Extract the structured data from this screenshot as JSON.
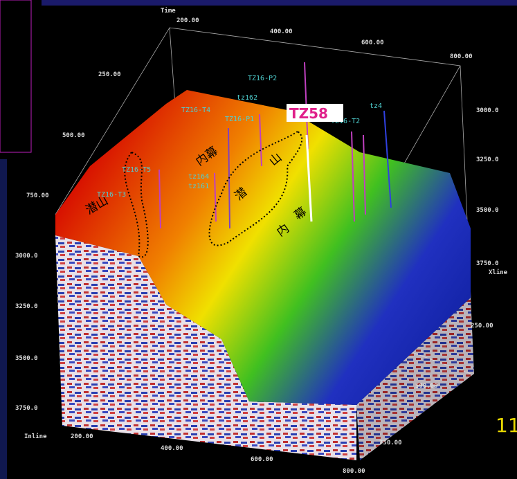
{
  "axes": {
    "time_title": "Time",
    "inline_title": "Inline",
    "xline_title": "Xline",
    "top_ticks": [
      "200.00",
      "400.00",
      "600.00",
      "800.00"
    ],
    "left_upper_ticks": [
      "250.00",
      "500.00",
      "750.00"
    ],
    "left_time_ticks": [
      "3000.0",
      "3250.0",
      "3500.0",
      "3750.0"
    ],
    "right_time_ticks": [
      "3000.0",
      "3250.0",
      "3500.0",
      "3750.0"
    ],
    "bottom_ticks": [
      "200.00",
      "400.00",
      "600.00",
      "800.00"
    ],
    "xline_ticks": [
      "250.00",
      "500.00",
      "750.00"
    ]
  },
  "wells": [
    "TZ16-P2",
    "tz162",
    "TZ16-T4",
    "TZ16-P1",
    "tz4",
    "TZ16-T2",
    "tz164",
    "tz161",
    "TZ16-T5",
    "TZ16-T3"
  ],
  "highlight_well": "TZ58",
  "annotations": [
    "潜山",
    "内幕",
    "潜",
    "山",
    "内",
    "幕",
    "内",
    "幕"
  ],
  "page_number": "11"
}
